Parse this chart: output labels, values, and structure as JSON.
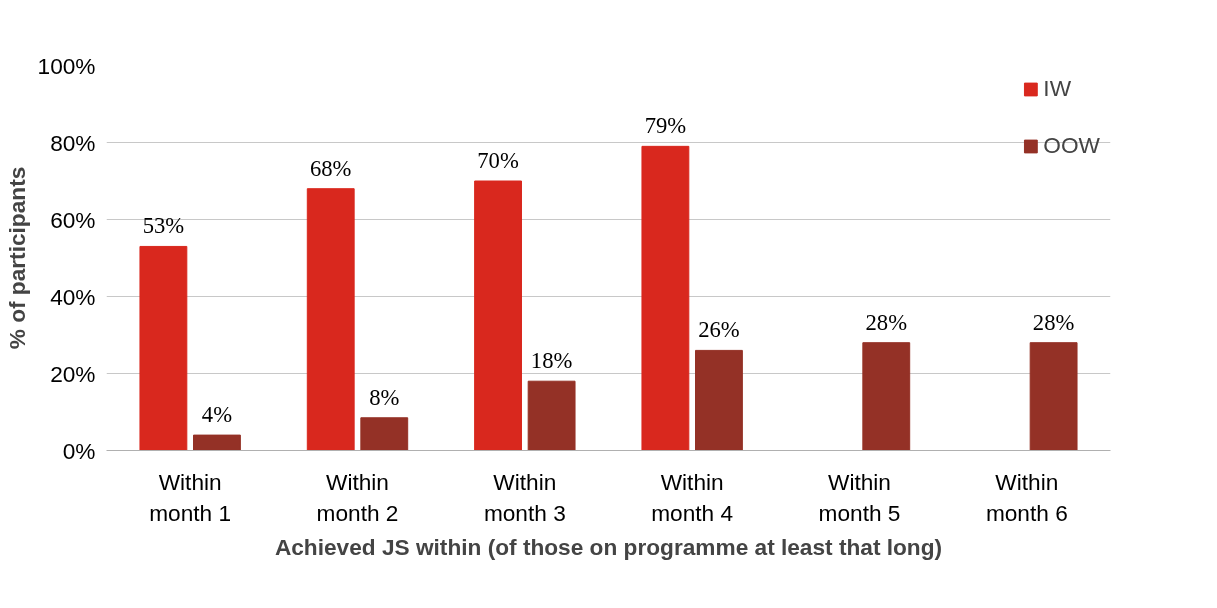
{
  "chart_data": {
    "type": "bar",
    "xlabel": "Achieved JS within (of those on programme at least that long)",
    "ylabel": "% of participants",
    "categories": [
      "Within\nmonth 1",
      "Within\nmonth 2",
      "Within\nmonth 3",
      "Within\nmonth 4",
      "Within\nmonth 5",
      "Within\nmonth 6"
    ],
    "series": [
      {
        "name": "IW",
        "color": "#d9281e",
        "values": [
          53,
          68,
          70,
          79,
          null,
          null
        ],
        "value_labels": [
          "53%",
          "68%",
          "70%",
          "79%",
          null,
          null
        ]
      },
      {
        "name": "OOW",
        "color": "#943126",
        "values": [
          4,
          8.5,
          18,
          26,
          28,
          28
        ],
        "value_labels": [
          "4%",
          "8%",
          "18%",
          "26%",
          "28%",
          "28%"
        ]
      }
    ],
    "ylim": [
      0,
      100
    ],
    "yticks": [
      {
        "value": 0,
        "label": "0%"
      },
      {
        "value": 20,
        "label": "20%"
      },
      {
        "value": 40,
        "label": "40%"
      },
      {
        "value": 60,
        "label": "60%"
      },
      {
        "value": 80,
        "label": "80%"
      },
      {
        "value": 100,
        "label": "100%"
      }
    ],
    "grid": "y",
    "legend": "top right"
  }
}
